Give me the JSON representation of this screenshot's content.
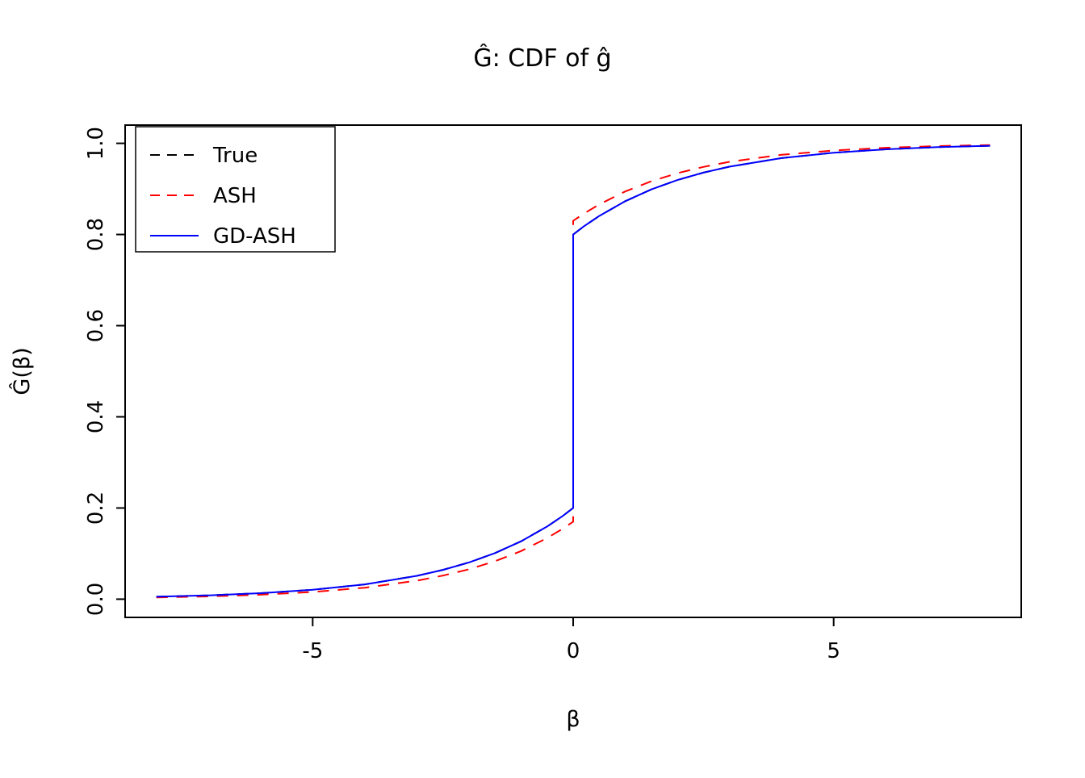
{
  "chart_data": {
    "type": "line",
    "title": "Ĝ: CDF of ĝ",
    "xlabel": "β",
    "ylabel": "Ĝ(β)",
    "xlim": [
      -8.6,
      8.6
    ],
    "ylim": [
      -0.04,
      1.04
    ],
    "grid": false,
    "x_ticks": [
      {
        "value": -5,
        "label": "-5"
      },
      {
        "value": 0,
        "label": "0"
      },
      {
        "value": 5,
        "label": "5"
      }
    ],
    "y_ticks": [
      {
        "value": 0.0,
        "label": "0.0"
      },
      {
        "value": 0.2,
        "label": "0.2"
      },
      {
        "value": 0.4,
        "label": "0.4"
      },
      {
        "value": 0.6,
        "label": "0.6"
      },
      {
        "value": 0.8,
        "label": "0.8"
      },
      {
        "value": 1.0,
        "label": "1.0"
      }
    ],
    "legend": {
      "position": "top-left",
      "entries": [
        {
          "label": "True",
          "color": "#000000",
          "dashed": true
        },
        {
          "label": "ASH",
          "color": "#FF0000",
          "dashed": true
        },
        {
          "label": "GD-ASH",
          "color": "#0000FF",
          "dashed": false
        }
      ]
    },
    "series": [
      {
        "name": "True",
        "color": "#000000",
        "style": "dashed",
        "x": [
          -8,
          -7,
          -6,
          -5,
          -4,
          -3,
          -2.5,
          -2,
          -1.5,
          -1,
          -0.5,
          -0.2,
          0,
          0,
          0.2,
          0.5,
          1,
          1.5,
          2,
          2.5,
          3,
          4,
          5,
          6,
          7,
          8
        ],
        "y": [
          0.0053,
          0.0083,
          0.0131,
          0.0206,
          0.0325,
          0.0511,
          0.0642,
          0.0806,
          0.1011,
          0.1269,
          0.1593,
          0.1826,
          0.2,
          0.8,
          0.8174,
          0.8407,
          0.8731,
          0.8989,
          0.9194,
          0.9358,
          0.9489,
          0.9675,
          0.9794,
          0.9869,
          0.9917,
          0.9947
        ]
      },
      {
        "name": "ASH",
        "color": "#FF0000",
        "style": "dashed",
        "x": [
          -8,
          -7,
          -6,
          -5,
          -4,
          -3,
          -2.5,
          -2,
          -1.5,
          -1,
          -0.5,
          -0.2,
          0,
          0,
          0.2,
          0.5,
          1,
          1.5,
          2,
          2.5,
          3,
          4,
          5,
          6,
          7,
          8
        ],
        "y": [
          0.0038,
          0.0061,
          0.0098,
          0.0157,
          0.0252,
          0.0406,
          0.0517,
          0.0655,
          0.0832,
          0.1056,
          0.134,
          0.1546,
          0.17,
          0.83,
          0.8454,
          0.866,
          0.8944,
          0.9168,
          0.9345,
          0.9483,
          0.9594,
          0.9748,
          0.9843,
          0.9902,
          0.9939,
          0.9962
        ]
      },
      {
        "name": "GD-ASH",
        "color": "#0000FF",
        "style": "solid",
        "x": [
          -8,
          -7,
          -6,
          -5,
          -4,
          -3,
          -2.5,
          -2,
          -1.5,
          -1,
          -0.5,
          -0.2,
          0,
          0,
          0.2,
          0.5,
          1,
          1.5,
          2,
          2.5,
          3,
          4,
          5,
          6,
          7,
          8
        ],
        "y": [
          0.0053,
          0.0083,
          0.0131,
          0.0206,
          0.0325,
          0.0511,
          0.0642,
          0.0806,
          0.1011,
          0.1269,
          0.1593,
          0.1826,
          0.2,
          0.8,
          0.8174,
          0.8407,
          0.8731,
          0.8989,
          0.9194,
          0.9358,
          0.9489,
          0.9675,
          0.9794,
          0.9869,
          0.9917,
          0.9947
        ]
      }
    ]
  }
}
